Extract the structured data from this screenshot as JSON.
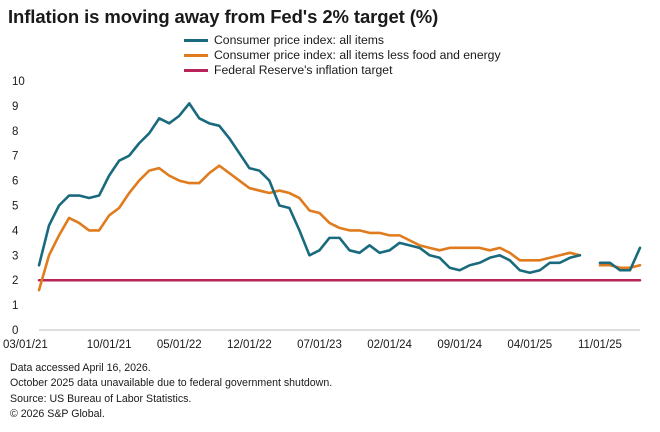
{
  "chart_data": {
    "type": "line",
    "title": "Inflation is moving away from Fed's 2% target (%)",
    "ylim": [
      0,
      10
    ],
    "y_ticks": [
      "0",
      "1",
      "2",
      "3",
      "4",
      "5",
      "6",
      "7",
      "8",
      "9",
      "10"
    ],
    "x_ticks": [
      "03/01/21",
      "10/01/21",
      "05/01/22",
      "12/01/22",
      "07/01/23",
      "02/01/24",
      "09/01/24",
      "04/01/25",
      "11/01/25"
    ],
    "x_start": "2021-03",
    "grid": false,
    "legend_position": "top",
    "series": [
      {
        "name": "Consumer price index: all items",
        "color": "#1a6a7e",
        "values": [
          2.6,
          4.2,
          5.0,
          5.4,
          5.4,
          5.3,
          5.4,
          6.2,
          6.8,
          7.0,
          7.5,
          7.9,
          8.5,
          8.3,
          8.6,
          9.1,
          8.5,
          8.3,
          8.2,
          7.7,
          7.1,
          6.5,
          6.4,
          6.0,
          5.0,
          4.9,
          4.0,
          3.0,
          3.2,
          3.7,
          3.7,
          3.2,
          3.1,
          3.4,
          3.1,
          3.2,
          3.5,
          3.4,
          3.3,
          3.0,
          2.9,
          2.5,
          2.4,
          2.6,
          2.7,
          2.9,
          3.0,
          2.8,
          2.4,
          2.3,
          2.4,
          2.7,
          2.7,
          2.9,
          3.0,
          null,
          2.7,
          2.7,
          2.4,
          2.4,
          3.3
        ]
      },
      {
        "name": "Consumer price index: all items less food and energy",
        "color": "#e07b1e",
        "values": [
          1.6,
          3.0,
          3.8,
          4.5,
          4.3,
          4.0,
          4.0,
          4.6,
          4.9,
          5.5,
          6.0,
          6.4,
          6.5,
          6.2,
          6.0,
          5.9,
          5.9,
          6.3,
          6.6,
          6.3,
          6.0,
          5.7,
          5.6,
          5.5,
          5.6,
          5.5,
          5.3,
          4.8,
          4.7,
          4.3,
          4.1,
          4.0,
          4.0,
          3.9,
          3.9,
          3.8,
          3.8,
          3.6,
          3.4,
          3.3,
          3.2,
          3.3,
          3.3,
          3.3,
          3.3,
          3.2,
          3.3,
          3.1,
          2.8,
          2.8,
          2.8,
          2.9,
          3.0,
          3.1,
          3.0,
          null,
          2.6,
          2.6,
          2.5,
          2.5,
          2.6
        ]
      },
      {
        "name": "Federal Reserve's inflation target",
        "color": "#b8245a",
        "values": [
          2,
          2,
          2,
          2,
          2,
          2,
          2,
          2,
          2,
          2,
          2,
          2,
          2,
          2,
          2,
          2,
          2,
          2,
          2,
          2,
          2,
          2,
          2,
          2,
          2,
          2,
          2,
          2,
          2,
          2,
          2,
          2,
          2,
          2,
          2,
          2,
          2,
          2,
          2,
          2,
          2,
          2,
          2,
          2,
          2,
          2,
          2,
          2,
          2,
          2,
          2,
          2,
          2,
          2,
          2,
          2,
          2,
          2,
          2,
          2,
          2
        ]
      }
    ]
  },
  "notes": [
    "Data accessed April 16, 2026.",
    "October 2025 data unavailable due to federal government shutdown.",
    "Source: US Bureau of Labor Statistics.",
    "© 2026 S&P Global."
  ]
}
